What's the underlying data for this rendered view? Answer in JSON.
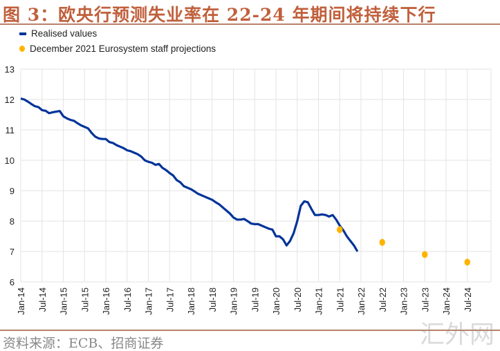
{
  "title": "图 3：欧央行预测失业率在 22-24 年期间将持续下行",
  "source": "资料来源：ECB、招商证券",
  "watermark": "汇外网",
  "colors": {
    "realised": "#003399",
    "projection": "#ffb400",
    "title": "#c0603c",
    "grid": "#e3e3e3"
  },
  "chart_data": {
    "type": "line",
    "title": "图 3：欧央行预测失业率在 22-24 年期间将持续下行",
    "xlabel": "",
    "ylabel": "",
    "ylim": [
      6,
      13
    ],
    "yticks": [
      6,
      7,
      8,
      9,
      10,
      11,
      12,
      13
    ],
    "xticks": [
      "Jan-14",
      "Jul-14",
      "Jan-15",
      "Jul-15",
      "Jan-16",
      "Jul-16",
      "Jan-17",
      "Jul-17",
      "Jan-18",
      "Jul-18",
      "Jan-19",
      "Jul-19",
      "Jan-20",
      "Jul-20",
      "Jan-21",
      "Jul-21",
      "Jan-22",
      "Jul-22",
      "Jan-23",
      "Jul-23",
      "Jan-24",
      "Jul-24"
    ],
    "grid": true,
    "legend_placement": "top-left",
    "series": [
      {
        "name": "Realised values",
        "kind": "line",
        "start": "Jan-14",
        "frequency": "monthly",
        "values": [
          12.03,
          12.0,
          11.93,
          11.85,
          11.78,
          11.75,
          11.65,
          11.63,
          11.55,
          11.58,
          11.6,
          11.62,
          11.45,
          11.38,
          11.33,
          11.3,
          11.22,
          11.15,
          11.1,
          11.05,
          10.9,
          10.78,
          10.72,
          10.7,
          10.7,
          10.6,
          10.57,
          10.5,
          10.45,
          10.4,
          10.33,
          10.3,
          10.25,
          10.2,
          10.12,
          10.0,
          9.95,
          9.92,
          9.85,
          9.88,
          9.75,
          9.68,
          9.58,
          9.5,
          9.35,
          9.28,
          9.15,
          9.1,
          9.05,
          8.98,
          8.9,
          8.85,
          8.8,
          8.75,
          8.7,
          8.62,
          8.55,
          8.45,
          8.35,
          8.25,
          8.12,
          8.05,
          8.05,
          8.07,
          8.0,
          7.92,
          7.9,
          7.9,
          7.85,
          7.8,
          7.75,
          7.72,
          7.5,
          7.5,
          7.4,
          7.2,
          7.35,
          7.6,
          8.0,
          8.5,
          8.65,
          8.62,
          8.4,
          8.2,
          8.2,
          8.22,
          8.2,
          8.15,
          8.2,
          8.05,
          7.85,
          7.7,
          7.5,
          7.35,
          7.2,
          7.0
        ]
      },
      {
        "name": "December 2021 Eurosystem staff projections",
        "kind": "scatter",
        "points": [
          {
            "x": "Jul-21",
            "y": 7.72
          },
          {
            "x": "Jul-22",
            "y": 7.3
          },
          {
            "x": "Jul-23",
            "y": 6.9
          },
          {
            "x": "Jul-24",
            "y": 6.65
          }
        ]
      }
    ]
  }
}
